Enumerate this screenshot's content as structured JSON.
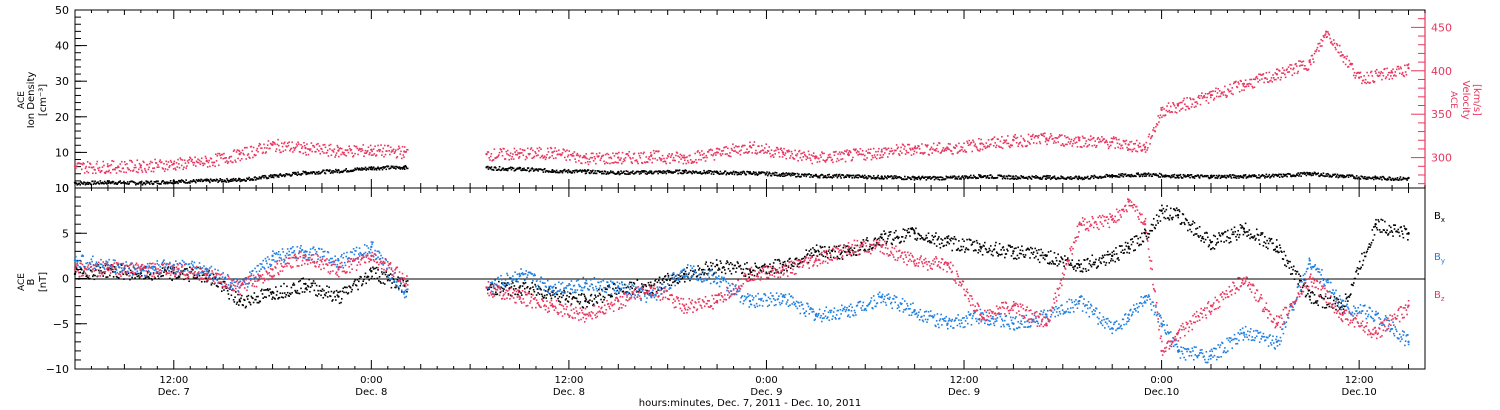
{
  "colors": {
    "black": "#000000",
    "pink": "#e8365e",
    "blue": "#1f7fe0",
    "frame": "#000000"
  },
  "xlabel": "hours:minutes, Dec. 7, 2011 - Dec. 10, 2011",
  "xticks": [
    {
      "hour": 12,
      "time": "12:00",
      "date": "Dec. 7"
    },
    {
      "hour": 24,
      "time": "0:00",
      "date": "Dec. 8"
    },
    {
      "hour": 36,
      "time": "12:00",
      "date": "Dec. 8"
    },
    {
      "hour": 48,
      "time": "0:00",
      "date": "Dec. 9"
    },
    {
      "hour": 60,
      "time": "12:00",
      "date": "Dec. 9"
    },
    {
      "hour": 72,
      "time": "0:00",
      "date": "Dec.10"
    },
    {
      "hour": 84,
      "time": "12:00",
      "date": "Dec.10"
    }
  ],
  "chart_data": [
    {
      "type": "scatter",
      "xlim_hours": [
        6,
        88
      ],
      "ylim": [
        0,
        50
      ],
      "ylabel_left": [
        "ACE",
        "Ion Density",
        "[cm⁻³]"
      ],
      "ylabel_right": [
        "ACE",
        "Velocity",
        "[km/s]"
      ],
      "y2lim": [
        265,
        470
      ],
      "yticks": [
        0,
        10,
        20,
        30,
        40,
        50
      ],
      "y2ticks": [
        300,
        350,
        400,
        450
      ],
      "data_gap_hours": [
        26.2,
        31.0
      ],
      "series": [
        {
          "name": "Ion Density",
          "color": "black",
          "axis": "left",
          "x": [
            6,
            8,
            10,
            12,
            14,
            16,
            18,
            20,
            22,
            24,
            26,
            31,
            33,
            35,
            37,
            39,
            41,
            43,
            45,
            47,
            49,
            51,
            53,
            55,
            57,
            59,
            61,
            63,
            65,
            67,
            69,
            71,
            73,
            75,
            77,
            79,
            81,
            83,
            85,
            87
          ],
          "y": [
            1.5,
            1.8,
            1.6,
            2.0,
            2.2,
            2.5,
            3.5,
            4.5,
            5.0,
            5.8,
            6.0,
            5.8,
            5.5,
            5.0,
            4.8,
            4.5,
            4.6,
            4.8,
            4.5,
            4.4,
            4.0,
            3.6,
            3.5,
            3.2,
            3.0,
            3.0,
            3.5,
            3.2,
            3.2,
            3.0,
            3.6,
            4.0,
            3.5,
            3.4,
            3.5,
            3.6,
            4.2,
            3.5,
            3.0,
            2.8
          ]
        },
        {
          "name": "Velocity",
          "color": "pink",
          "axis": "right",
          "x": [
            6,
            8,
            10,
            12,
            14,
            16,
            18,
            20,
            22,
            24,
            26,
            31,
            33,
            35,
            37,
            39,
            41,
            43,
            45,
            47,
            49,
            51,
            53,
            55,
            57,
            59,
            61,
            63,
            65,
            67,
            69,
            70,
            71,
            72,
            73,
            75,
            77,
            79,
            81,
            82,
            83,
            84,
            86,
            87
          ],
          "y": [
            290,
            290,
            291,
            293,
            296,
            304,
            315,
            311,
            308,
            309,
            307,
            304,
            305,
            306,
            300,
            300,
            302,
            300,
            306,
            313,
            306,
            300,
            303,
            307,
            311,
            311,
            316,
            320,
            322,
            320,
            318,
            315,
            312,
            355,
            360,
            372,
            385,
            396,
            410,
            445,
            418,
            392,
            398,
            403
          ]
        }
      ]
    },
    {
      "type": "scatter",
      "xlim_hours": [
        6,
        88
      ],
      "ylim": [
        -10,
        10
      ],
      "ylabel_left": [
        "ACE",
        "B",
        "[nT]"
      ],
      "yticks": [
        -10,
        -5,
        0,
        5,
        10
      ],
      "zero_line": true,
      "data_gap_hours": [
        26.2,
        31.0
      ],
      "series": [
        {
          "name": "Bx",
          "color": "black",
          "label": "B",
          "sub": "x",
          "x": [
            6,
            8,
            10,
            12,
            14,
            16,
            18,
            20,
            22,
            24,
            26,
            31,
            33,
            35,
            37,
            39,
            41,
            43,
            45,
            47,
            49,
            51,
            53,
            55,
            57,
            59,
            61,
            63,
            65,
            67,
            69,
            70,
            71,
            72,
            73,
            75,
            77,
            79,
            81,
            83,
            85,
            87
          ],
          "y": [
            0.5,
            1.0,
            0.6,
            0.6,
            0.5,
            -2.5,
            -1.5,
            -0.6,
            -2.0,
            0.8,
            -0.8,
            -1.0,
            -1.0,
            -1.5,
            -2.5,
            -1.0,
            -0.8,
            0.5,
            1.5,
            1.0,
            1.5,
            3.0,
            3.0,
            4.5,
            5.0,
            4.0,
            3.5,
            3.0,
            2.5,
            1.5,
            2.5,
            3.5,
            5.0,
            7.5,
            7.0,
            4.0,
            5.5,
            3.5,
            -2.0,
            -3.0,
            6.0,
            5.0
          ]
        },
        {
          "name": "By",
          "color": "blue",
          "label": "B",
          "sub": "y",
          "x": [
            6,
            8,
            10,
            12,
            14,
            16,
            18,
            20,
            22,
            24,
            26,
            31,
            33,
            35,
            37,
            39,
            41,
            43,
            45,
            47,
            49,
            51,
            53,
            55,
            57,
            59,
            61,
            63,
            65,
            67,
            69,
            70,
            71,
            72,
            73,
            75,
            77,
            79,
            81,
            83,
            85,
            87
          ],
          "y": [
            2.0,
            1.5,
            1.0,
            1.5,
            1.0,
            -1.0,
            2.5,
            3.0,
            2.0,
            3.5,
            -1.5,
            -1.0,
            0.5,
            -1.0,
            -0.5,
            -1.0,
            -2.0,
            1.0,
            0.0,
            -2.5,
            -2.0,
            -4.0,
            -3.5,
            -2.0,
            -3.5,
            -5.0,
            -4.0,
            -5.0,
            -4.0,
            -2.5,
            -5.5,
            -4.0,
            -2.0,
            -5.0,
            -8.0,
            -8.5,
            -6.0,
            -7.0,
            2.0,
            -3.0,
            -4.0,
            -7.0
          ]
        },
        {
          "name": "Bz",
          "color": "pink",
          "label": "B",
          "sub": "z",
          "x": [
            6,
            8,
            10,
            12,
            14,
            16,
            18,
            20,
            22,
            24,
            26,
            31,
            33,
            35,
            37,
            39,
            41,
            43,
            45,
            47,
            49,
            51,
            53,
            55,
            57,
            59,
            61,
            63,
            65,
            67,
            69,
            70,
            71,
            72,
            73,
            75,
            77,
            79,
            81,
            83,
            85,
            87
          ],
          "y": [
            1.0,
            1.2,
            1.0,
            1.0,
            0.5,
            -1.0,
            1.0,
            2.5,
            1.0,
            2.5,
            0.0,
            -1.0,
            -2.0,
            -3.0,
            -4.0,
            -2.5,
            -1.0,
            -3.0,
            -2.5,
            0.5,
            1.0,
            2.0,
            3.5,
            3.5,
            2.0,
            1.5,
            -4.0,
            -3.0,
            -5.0,
            6.0,
            6.5,
            8.5,
            6.0,
            -8.0,
            -6.0,
            -3.0,
            0.0,
            -5.0,
            0.0,
            -4.0,
            -6.0,
            -3.0
          ]
        }
      ]
    }
  ]
}
